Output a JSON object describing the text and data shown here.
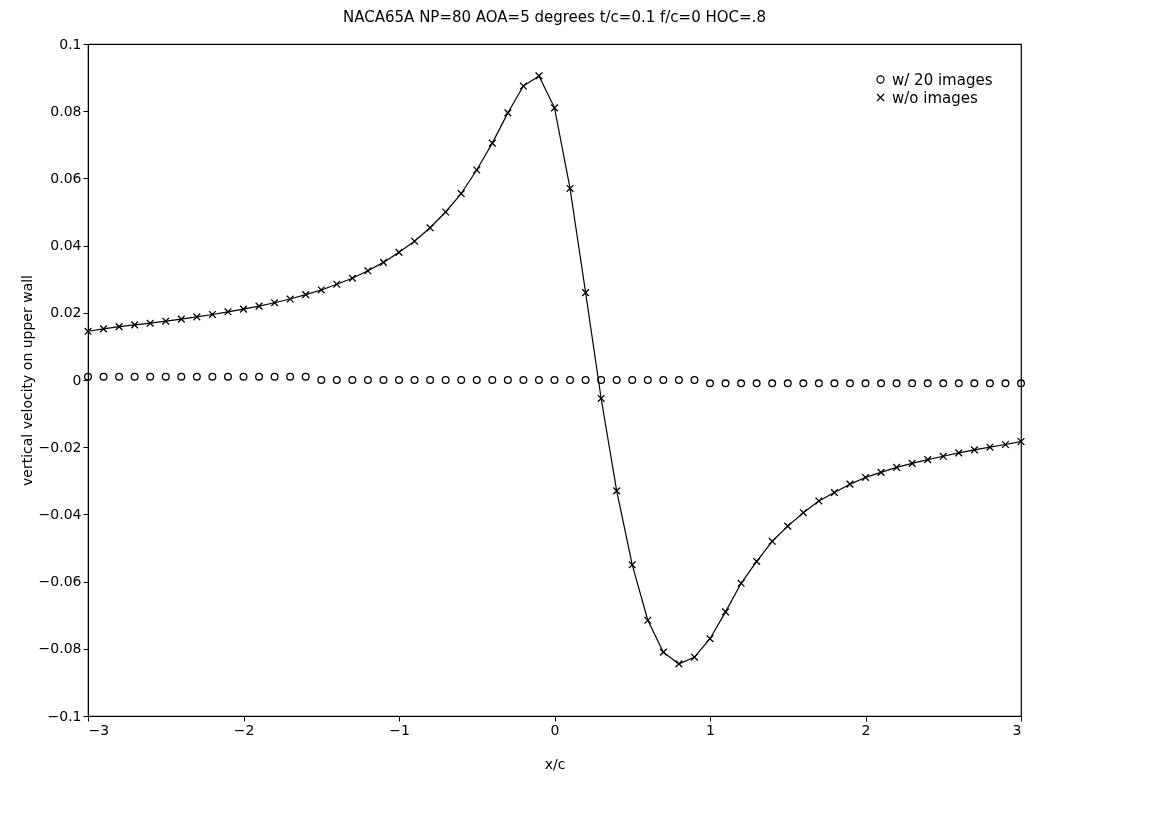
{
  "chart_data": {
    "type": "line",
    "title": "NACA65A    NP=80    AOA=5 degrees    t/c=0.1  f/c=0    HOC=.8",
    "xlabel": "x/c",
    "ylabel": "vertical velocity on upper wall",
    "x": [
      -3,
      -2.9,
      -2.8,
      -2.7,
      -2.6,
      -2.5,
      -2.4,
      -2.3,
      -2.2,
      -2.1,
      -2,
      -1.9,
      -1.8,
      -1.7,
      -1.6,
      -1.5,
      -1.4,
      -1.3,
      -1.2,
      -1.1,
      -1,
      -0.9,
      -0.8,
      -0.7,
      -0.6,
      -0.5,
      -0.4,
      -0.3,
      -0.2,
      -0.1,
      0,
      0.1,
      0.2,
      0.3,
      0.4,
      0.5,
      0.6,
      0.7,
      0.8,
      0.9,
      1,
      1.1,
      1.2,
      1.3,
      1.4,
      1.5,
      1.6,
      1.7,
      1.8,
      1.9,
      2,
      2.1,
      2.2,
      2.3,
      2.4,
      2.5,
      2.6,
      2.7,
      2.8,
      2.9,
      3
    ],
    "series": [
      {
        "name": "w/ 20 images",
        "type": "scatter",
        "marker": "circle",
        "color": "#000000",
        "values": [
          0.001,
          0.001,
          0.001,
          0.001,
          0.001,
          0.001,
          0.001,
          0.001,
          0.001,
          0.001,
          0.001,
          0.001,
          0.001,
          0.001,
          0.001,
          0,
          0,
          0,
          0,
          0,
          0,
          0,
          0,
          0,
          0,
          0,
          0,
          0,
          0,
          0,
          0,
          0,
          0,
          0,
          0,
          0,
          0,
          0,
          0,
          0,
          -0.001,
          -0.001,
          -0.001,
          -0.001,
          -0.001,
          -0.001,
          -0.001,
          -0.001,
          -0.001,
          -0.001,
          -0.001,
          -0.001,
          -0.001,
          -0.001,
          -0.001,
          -0.001,
          -0.001,
          -0.001,
          -0.001,
          -0.001,
          -0.001
        ]
      },
      {
        "name": "w/o images",
        "type": "line",
        "marker": "cross",
        "color": "#000000",
        "values": [
          0.0145,
          0.0152,
          0.0159,
          0.0164,
          0.0169,
          0.0175,
          0.0181,
          0.0188,
          0.0195,
          0.0203,
          0.0211,
          0.022,
          0.023,
          0.0241,
          0.0254,
          0.0268,
          0.0285,
          0.0303,
          0.0325,
          0.035,
          0.038,
          0.0413,
          0.0453,
          0.05,
          0.0555,
          0.0625,
          0.0705,
          0.0795,
          0.0875,
          0.0905,
          0.081,
          0.057,
          0.026,
          -0.0055,
          -0.033,
          -0.055,
          -0.0715,
          -0.081,
          -0.0845,
          -0.0825,
          -0.077,
          -0.069,
          -0.0605,
          -0.054,
          -0.048,
          -0.0435,
          -0.0395,
          -0.036,
          -0.0335,
          -0.031,
          -0.029,
          -0.0275,
          -0.026,
          -0.0248,
          -0.0237,
          -0.0227,
          -0.0217,
          -0.0208,
          -0.02,
          -0.0192,
          -0.0183
        ]
      }
    ],
    "xlim": [
      -3,
      3
    ],
    "xticks": [
      -3,
      -2,
      -1,
      0,
      1,
      2,
      3
    ],
    "ylim": [
      -0.1,
      0.1
    ],
    "yticks": [
      -0.1,
      -0.08,
      -0.06,
      -0.04,
      -0.02,
      0,
      0.02,
      0.04,
      0.06,
      0.08,
      0.1
    ],
    "grid": false,
    "legend": "top right"
  }
}
